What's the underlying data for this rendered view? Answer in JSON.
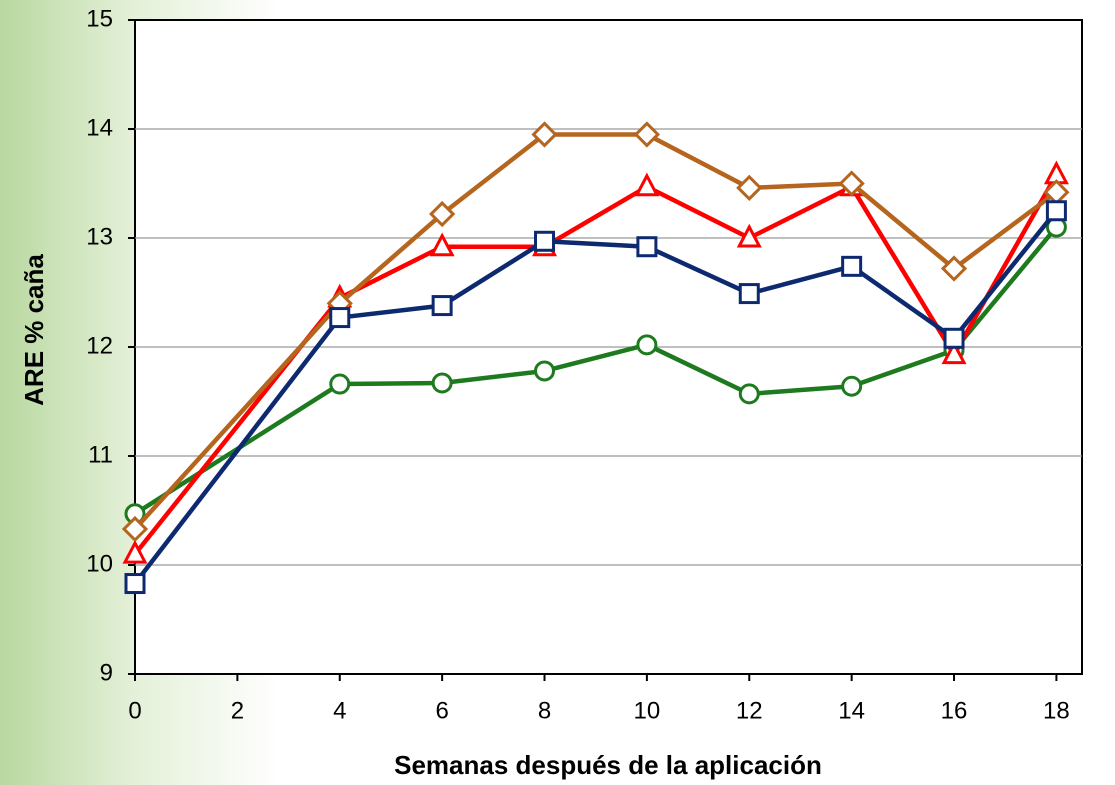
{
  "chart_data": {
    "type": "line",
    "x_label": "Semanas después de la aplicación",
    "y_label": "ARE % caña",
    "x": [
      0,
      4,
      6,
      8,
      10,
      12,
      14,
      16,
      18
    ],
    "series": [
      {
        "color": "#1e7a1e",
        "marker": "circle",
        "values": [
          10.47,
          11.66,
          11.67,
          11.78,
          12.02,
          11.57,
          11.64,
          11.97,
          13.1
        ]
      },
      {
        "color": "#ff0000",
        "marker": "triangle",
        "values": [
          10.1,
          12.45,
          12.92,
          12.92,
          13.47,
          13.0,
          13.47,
          11.93,
          13.58
        ]
      },
      {
        "color": "#b5651d",
        "marker": "diamond",
        "values": [
          10.33,
          12.4,
          13.22,
          13.95,
          13.95,
          13.46,
          13.5,
          12.72,
          13.42
        ]
      },
      {
        "color": "#0d2a70",
        "marker": "square",
        "values": [
          9.83,
          12.27,
          12.38,
          12.97,
          12.92,
          12.49,
          12.74,
          12.08,
          13.25
        ]
      }
    ],
    "xlim": [
      0,
      18.5
    ],
    "xticks": [
      0,
      2,
      4,
      6,
      8,
      10,
      12,
      14,
      16,
      18
    ],
    "ylim": [
      9,
      15
    ],
    "yticks": [
      9,
      10,
      11,
      12,
      13,
      14,
      15
    ],
    "grid": true
  }
}
